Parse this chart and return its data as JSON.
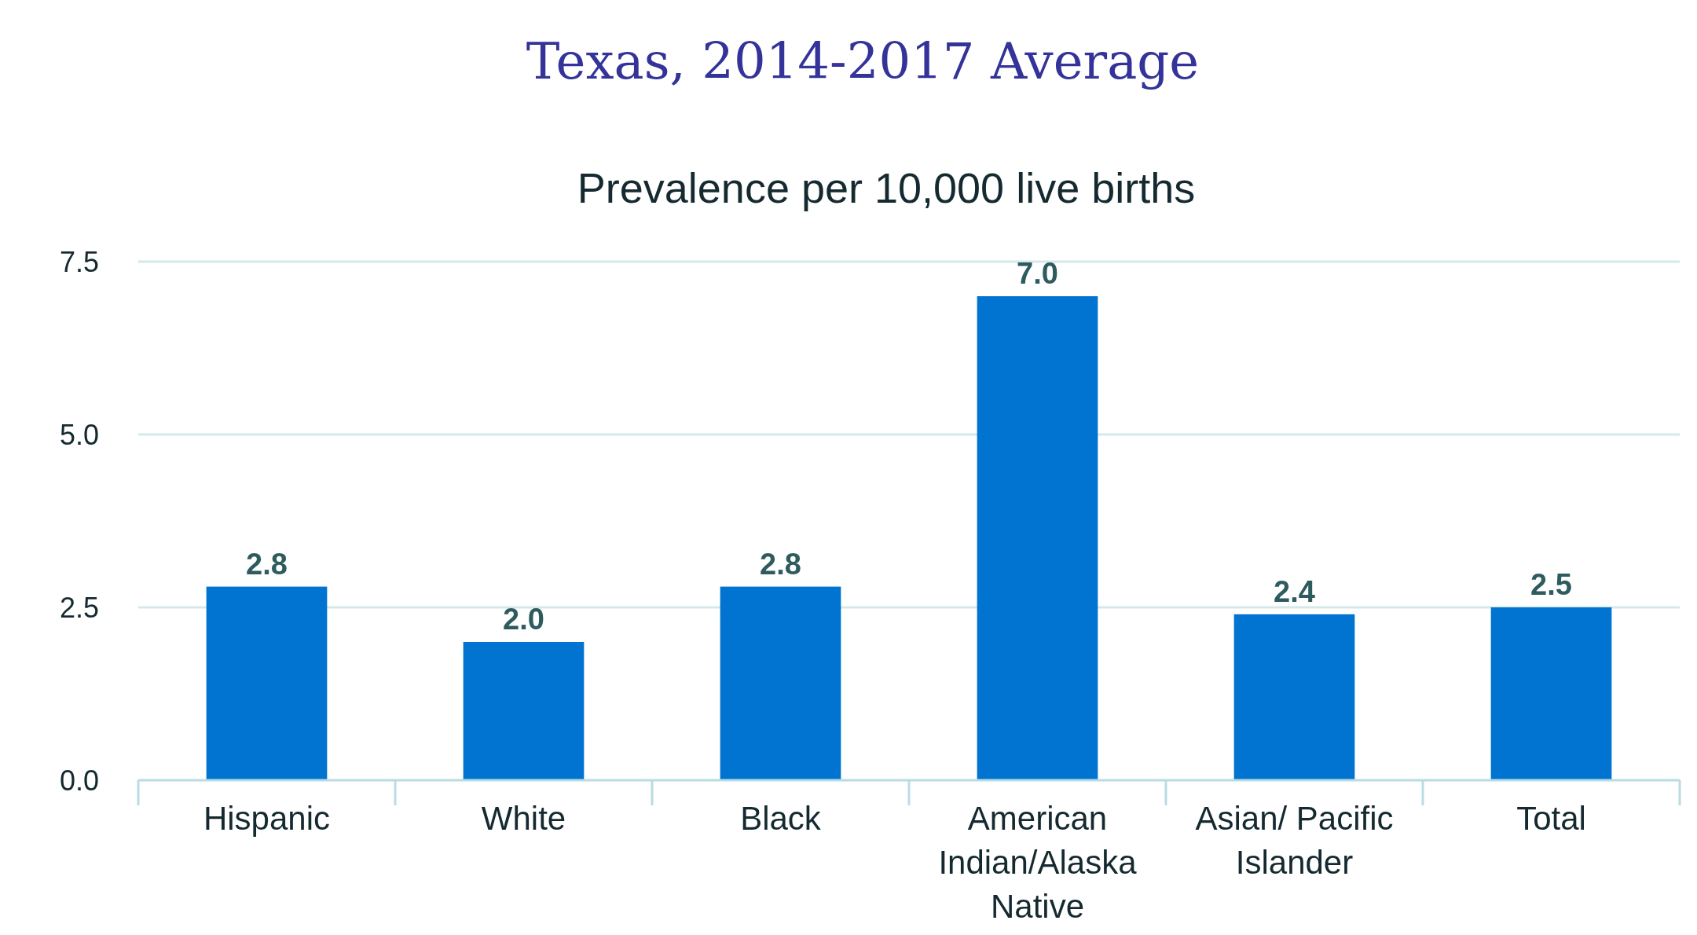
{
  "chart_data": {
    "type": "bar",
    "title": "Texas, 2014-2017 Average",
    "subtitle": "Prevalence per 10,000 live births",
    "categories": [
      "Hispanic",
      "White",
      "Black",
      "American Indian/Alaska Native",
      "Asian/ Pacific Islander",
      "Total"
    ],
    "values": [
      2.8,
      2.0,
      2.8,
      7.0,
      2.4,
      2.5
    ],
    "value_labels": [
      "2.8",
      "2.0",
      "2.8",
      "7.0",
      "2.4",
      "2.5"
    ],
    "color": "#0074d0",
    "ylim": [
      0,
      7.5
    ],
    "yticks": [
      {
        "value": 0,
        "label": "0.0"
      },
      {
        "value": 2.5,
        "label": "2.5"
      },
      {
        "value": 5,
        "label": "5.0"
      },
      {
        "value": 7.5,
        "label": "7.5"
      }
    ],
    "grid": "y"
  }
}
